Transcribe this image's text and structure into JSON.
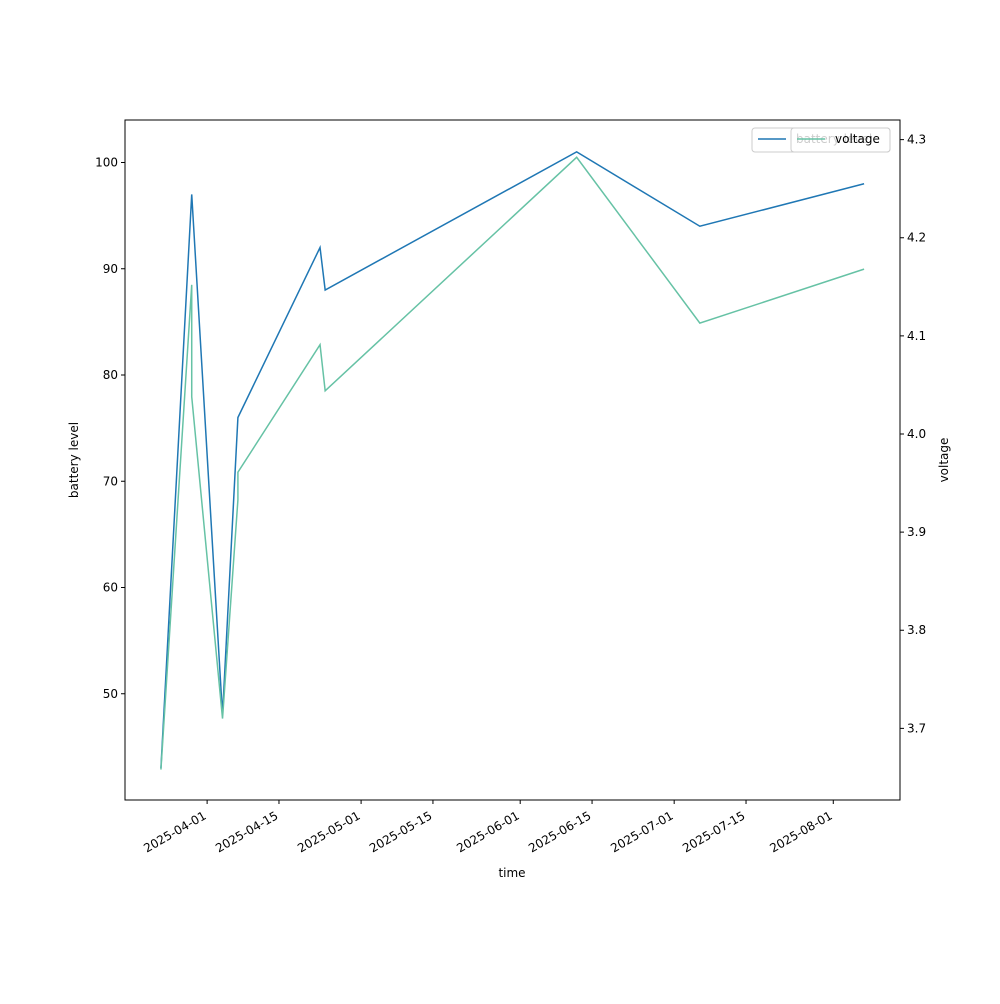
{
  "chart_data": {
    "type": "line",
    "x": [
      "2025-03-23",
      "2025-03-29",
      "2025-03-29",
      "2025-04-04",
      "2025-04-07",
      "2025-04-07",
      "2025-04-23",
      "2025-04-24",
      "2025-06-12",
      "2025-07-06",
      "2025-08-07"
    ],
    "xlabel": "time",
    "ylabel": "battery level",
    "y2label": "voltage",
    "series": [
      {
        "name": "battery level",
        "color": "#1f77b4",
        "values": [
          43,
          97,
          97,
          48,
          76,
          76,
          92,
          88,
          101,
          94,
          98
        ]
      },
      {
        "name": "voltage",
        "color": "#66c2a5",
        "axis": "y2",
        "values": [
          3.658,
          4.152,
          4.038,
          3.71,
          3.933,
          3.961,
          4.091,
          4.044,
          4.282,
          4.113,
          4.168
        ]
      }
    ],
    "xlim": [
      "2025-03-16",
      "2025-08-14"
    ],
    "xticks": [
      "2025-04-01",
      "2025-04-15",
      "2025-05-01",
      "2025-05-15",
      "2025-06-01",
      "2025-06-15",
      "2025-07-01",
      "2025-07-15",
      "2025-08-01"
    ],
    "ylim": [
      40,
      104
    ],
    "yticks": [
      50,
      60,
      70,
      80,
      90,
      100
    ],
    "y2lim": [
      3.627,
      4.32
    ],
    "y2ticks": [
      3.7,
      3.8,
      3.9,
      {
        "value": 4,
        "label": "4.0"
      },
      4.1,
      4.2,
      4.3
    ],
    "legend": "upper right"
  }
}
